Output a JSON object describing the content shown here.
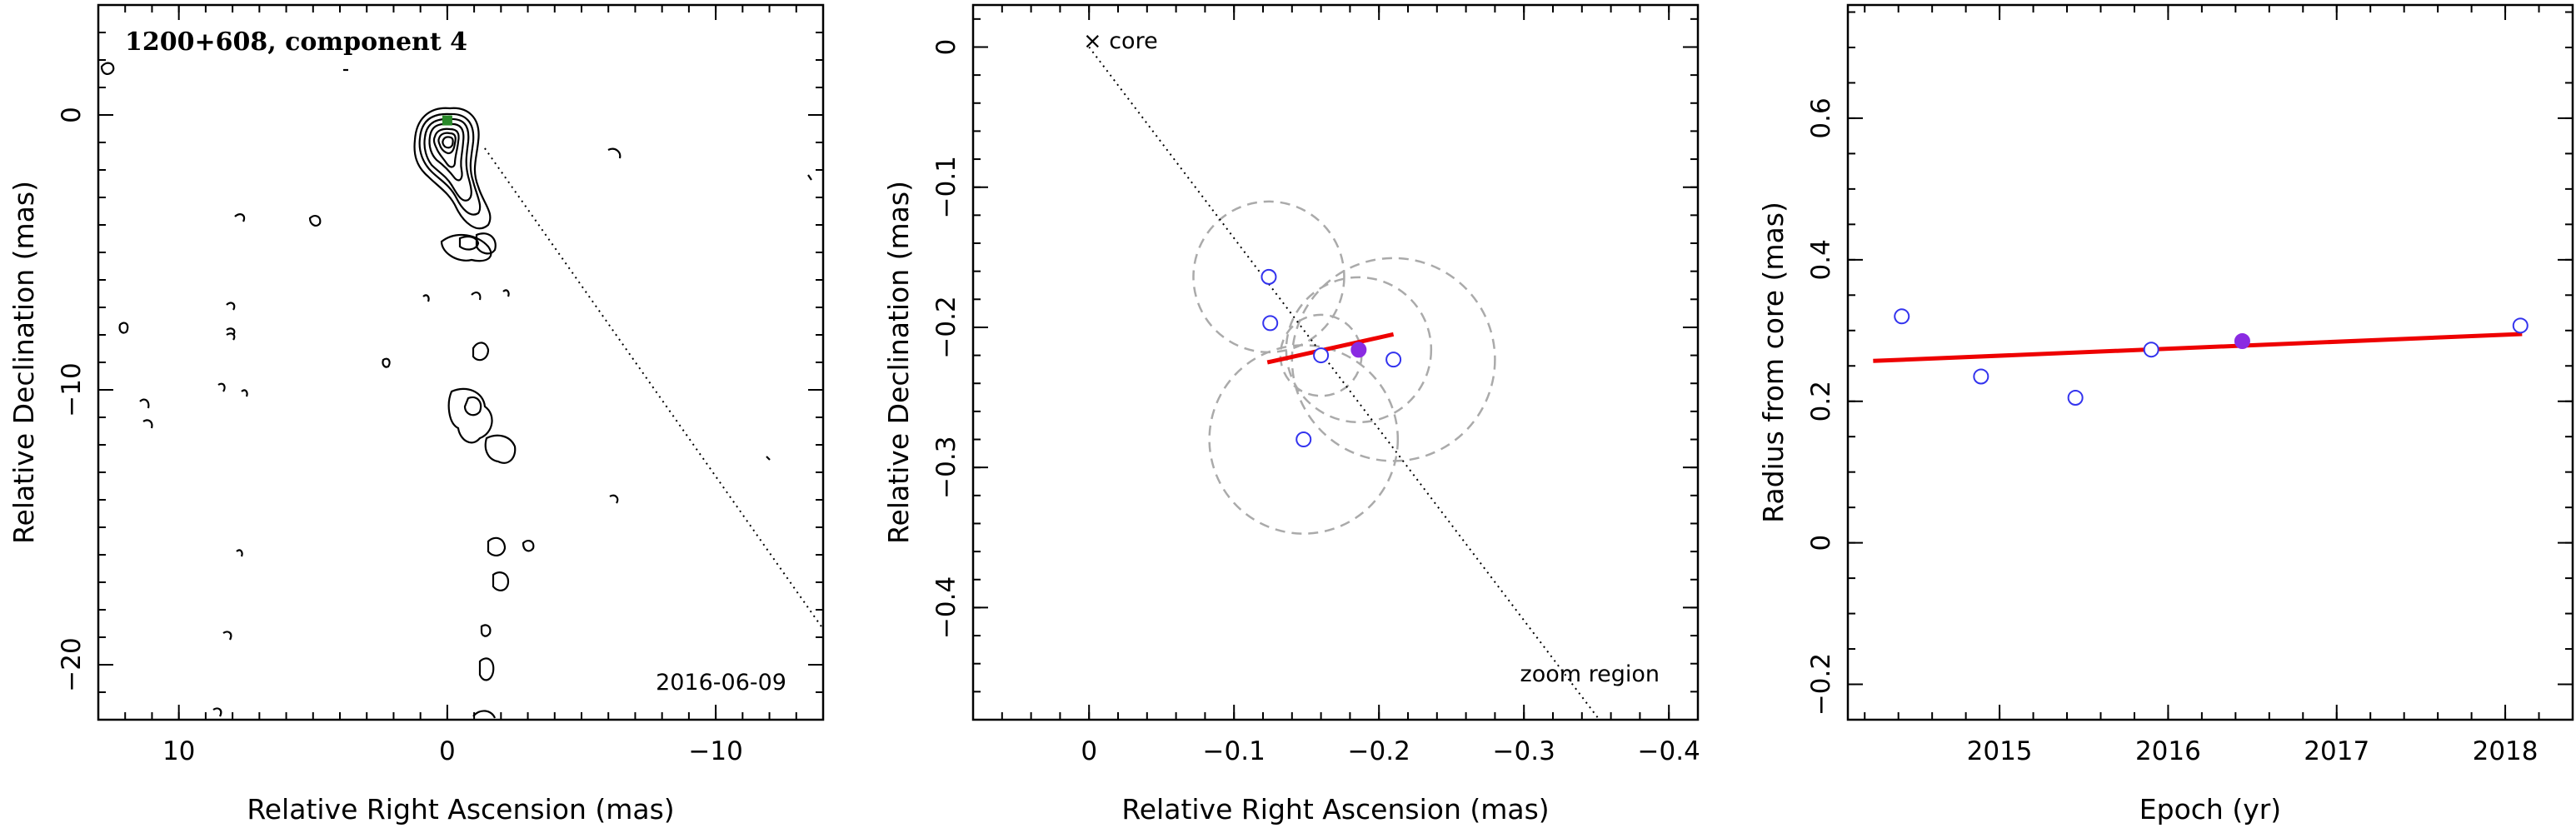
{
  "chart_data": [
    {
      "type": "contour",
      "title": "1200+608, component 4",
      "xlabel": "Relative Right Ascension (mas)",
      "ylabel": "Relative Declination (mas)",
      "xlim": [
        13,
        -14
      ],
      "ylim": [
        -22,
        4
      ],
      "x_ticks": [
        10,
        0,
        -10
      ],
      "x_tick_labels": [
        "10",
        "0",
        "−10"
      ],
      "y_ticks": [
        0,
        -10,
        -20
      ],
      "y_tick_labels": [
        "0",
        "−10",
        "−20"
      ],
      "date_label": "2016-06-09",
      "component_marker": {
        "x": 0.0,
        "y": -0.2,
        "color": "#2a8a2a"
      },
      "direction_line": {
        "from": [
          0,
          0
        ],
        "to": [
          -14,
          -18.7
        ]
      },
      "grid": false
    },
    {
      "type": "scatter",
      "xlabel": "Relative Right Ascension (mas)",
      "ylabel": "Relative Declination (mas)",
      "xlim": [
        0.08,
        -0.42
      ],
      "ylim": [
        -0.48,
        0.03
      ],
      "x_ticks": [
        0,
        -0.1,
        -0.2,
        -0.3,
        -0.4
      ],
      "x_tick_labels": [
        "0",
        "−0.1",
        "−0.2",
        "−0.3",
        "−0.4"
      ],
      "y_ticks": [
        0,
        -0.1,
        -0.2,
        -0.3,
        -0.4
      ],
      "y_tick_labels": [
        "0",
        "−0.1",
        "−0.2",
        "−0.3",
        "−0.4"
      ],
      "core_label": "× core",
      "zoom_label": "zoom region",
      "points_open": [
        {
          "x": -0.124,
          "y": -0.164
        },
        {
          "x": -0.125,
          "y": -0.197
        },
        {
          "x": -0.16,
          "y": -0.22
        },
        {
          "x": -0.21,
          "y": -0.223
        },
        {
          "x": -0.148,
          "y": -0.28
        }
      ],
      "point_filled": {
        "x": -0.186,
        "y": -0.216
      },
      "circles": [
        {
          "x": -0.124,
          "y": -0.164,
          "r": 0.052
        },
        {
          "x": -0.16,
          "y": -0.22,
          "r": 0.028
        },
        {
          "x": -0.186,
          "y": -0.216,
          "r": 0.05
        },
        {
          "x": -0.21,
          "y": -0.223,
          "r": 0.07
        },
        {
          "x": -0.148,
          "y": -0.28,
          "r": 0.065
        }
      ],
      "fit_line": {
        "from": [
          -0.123,
          -0.225
        ],
        "to": [
          -0.21,
          -0.205
        ]
      },
      "direction_line": {
        "from": [
          0,
          0
        ],
        "to": [
          -0.352,
          -0.48
        ]
      },
      "colors": {
        "points": "#3333ee",
        "filled": "#8a2be2",
        "fit": "#ee0000",
        "circles": "#aaaaaa"
      },
      "grid": false
    },
    {
      "type": "scatter",
      "xlabel": "Epoch (yr)",
      "ylabel": "Radius from core (mas)",
      "xlim": [
        2014.1,
        2018.4
      ],
      "ylim": [
        -0.25,
        0.76
      ],
      "x_ticks": [
        2015,
        2016,
        2017,
        2018
      ],
      "x_tick_labels": [
        "2015",
        "2016",
        "2017",
        "2018"
      ],
      "y_ticks": [
        -0.2,
        0,
        0.2,
        0.4,
        0.6
      ],
      "y_tick_labels": [
        "−0.2",
        "0",
        "0.2",
        "0.4",
        "0.6"
      ],
      "points_open": [
        {
          "x": 2014.42,
          "y": 0.32
        },
        {
          "x": 2014.89,
          "y": 0.235
        },
        {
          "x": 2015.45,
          "y": 0.205
        },
        {
          "x": 2015.9,
          "y": 0.273
        },
        {
          "x": 2018.09,
          "y": 0.307
        }
      ],
      "point_filled": {
        "x": 2016.44,
        "y": 0.285
      },
      "fit_line": {
        "from": [
          2014.25,
          0.257
        ],
        "to": [
          2018.1,
          0.295
        ]
      },
      "colors": {
        "points": "#3333ee",
        "filled": "#8a2be2",
        "fit": "#ee0000"
      },
      "grid": false
    }
  ]
}
